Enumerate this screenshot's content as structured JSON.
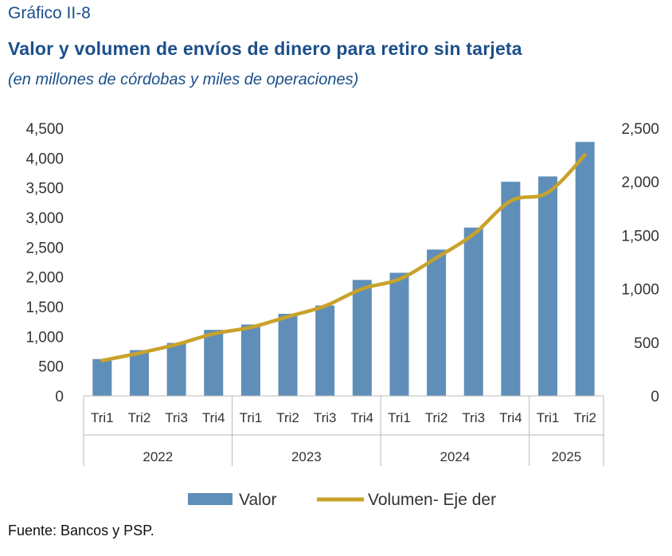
{
  "header": {
    "figure_label": "Gráfico II-8",
    "title": "Valor y volumen de envíos de dinero para retiro sin tarjeta",
    "subtitle": "(en millones de córdobas y miles de operaciones)"
  },
  "footer": {
    "source": "Fuente: Bancos y PSP."
  },
  "colors": {
    "bar": "#5f8fb8",
    "line": "#c9a22a",
    "axis": "#b8b8b8"
  },
  "chart_data": {
    "type": "bar",
    "title": "Valor y volumen de envíos de dinero para retiro sin tarjeta",
    "categories": [
      "Tri1",
      "Tri2",
      "Tri3",
      "Tri4",
      "Tri1",
      "Tri2",
      "Tri3",
      "Tri4",
      "Tri1",
      "Tri2",
      "Tri3",
      "Tri4",
      "Tri1",
      "Tri2"
    ],
    "groups": [
      {
        "label": "2022",
        "count": 4
      },
      {
        "label": "2023",
        "count": 4
      },
      {
        "label": "2024",
        "count": 4
      },
      {
        "label": "2025",
        "count": 2
      }
    ],
    "series": [
      {
        "name": "Valor",
        "type": "bar",
        "axis": "left",
        "values": [
          620,
          770,
          890,
          1110,
          1200,
          1380,
          1520,
          1950,
          2070,
          2460,
          2830,
          3600,
          3690,
          4270
        ]
      },
      {
        "name": "Volumen- Eje der",
        "type": "line",
        "axis": "right",
        "values": [
          330,
          400,
          480,
          580,
          640,
          740,
          840,
          1000,
          1090,
          1290,
          1510,
          1820,
          1900,
          2250
        ]
      }
    ],
    "ylim": [
      0,
      4500
    ],
    "yticks": [
      "0",
      "500",
      "1,000",
      "1,500",
      "2,000",
      "2,500",
      "3,000",
      "3,500",
      "4,000",
      "4,500"
    ],
    "y2lim": [
      0,
      2500
    ],
    "y2ticks": [
      "0",
      "500",
      "1,000",
      "1,500",
      "2,000",
      "2,500"
    ],
    "grid": false,
    "legend_position": "bottom"
  }
}
